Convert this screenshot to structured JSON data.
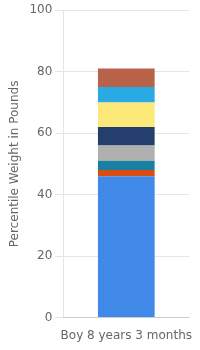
{
  "chart_data": {
    "type": "bar",
    "categories": [
      "Boy 8 years 3 months"
    ],
    "series": [
      {
        "color": "#4189e8",
        "values": [
          46
        ]
      },
      {
        "color": "#d94e10",
        "values": [
          2
        ]
      },
      {
        "color": "#1a7fa0",
        "values": [
          3
        ]
      },
      {
        "color": "#b0b0b0",
        "values": [
          5
        ]
      },
      {
        "color": "#243f6e",
        "values": [
          6
        ]
      },
      {
        "color": "#fde97a",
        "values": [
          8
        ]
      },
      {
        "color": "#29aae2",
        "values": [
          5
        ]
      },
      {
        "color": "#b8624a",
        "values": [
          6
        ]
      }
    ],
    "stacked": true,
    "ylabel": "Percentile Weight in Pounds",
    "ylim": [
      0,
      100
    ],
    "yticks": [
      0,
      20,
      40,
      60,
      80,
      100
    ],
    "grid": true
  }
}
